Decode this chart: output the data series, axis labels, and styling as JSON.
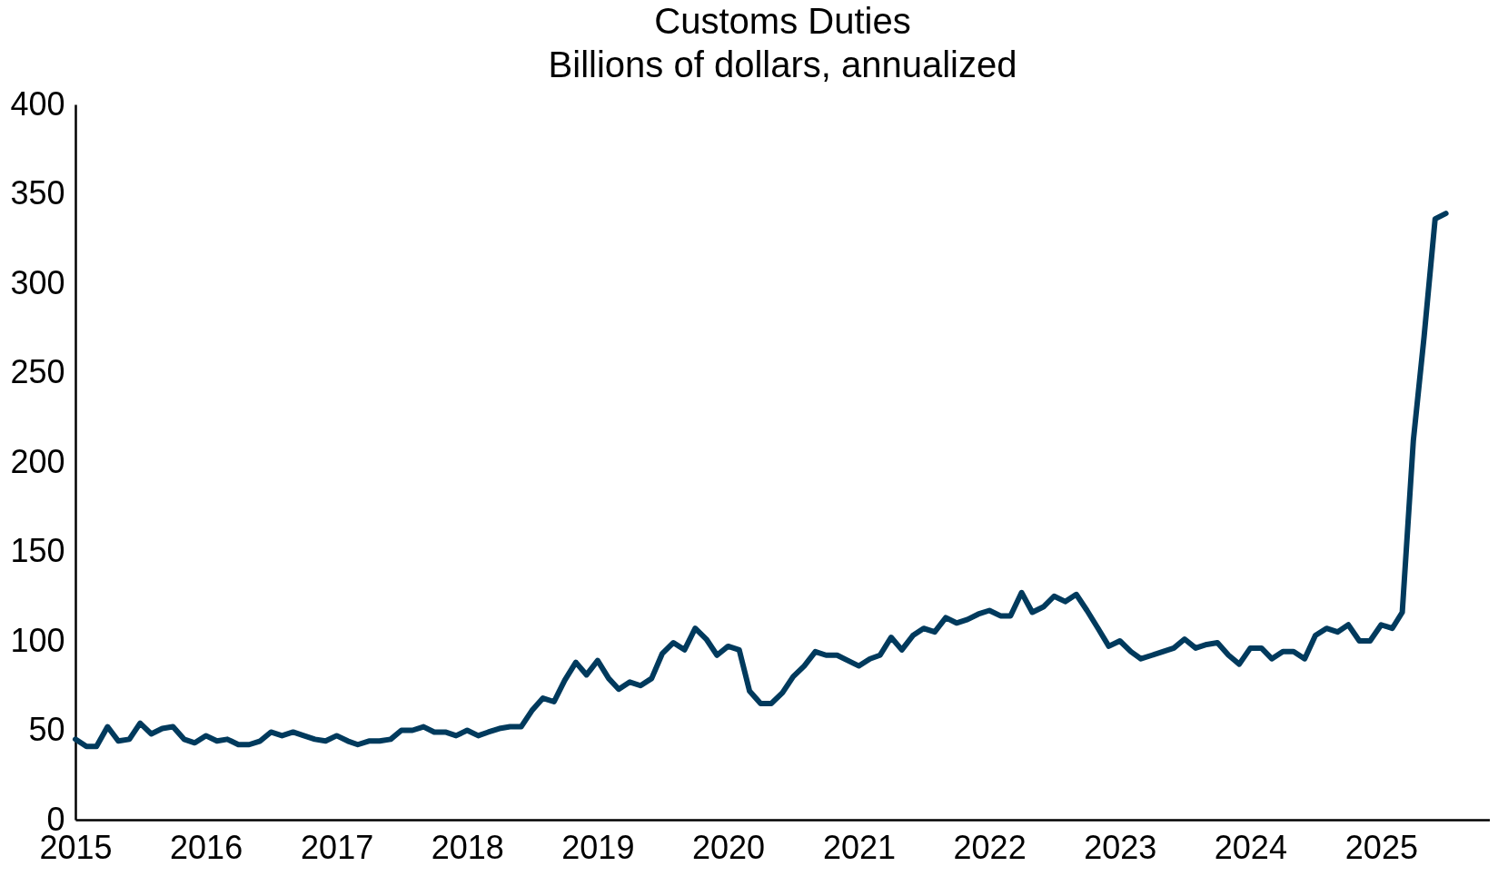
{
  "chart_data": {
    "type": "line",
    "title": "Customs Duties",
    "subtitle": "Billions of dollars, annualized",
    "x": [
      "2015-01",
      "2015-02",
      "2015-03",
      "2015-04",
      "2015-05",
      "2015-06",
      "2015-07",
      "2015-08",
      "2015-09",
      "2015-10",
      "2015-11",
      "2015-12",
      "2016-01",
      "2016-02",
      "2016-03",
      "2016-04",
      "2016-05",
      "2016-06",
      "2016-07",
      "2016-08",
      "2016-09",
      "2016-10",
      "2016-11",
      "2016-12",
      "2017-01",
      "2017-02",
      "2017-03",
      "2017-04",
      "2017-05",
      "2017-06",
      "2017-07",
      "2017-08",
      "2017-09",
      "2017-10",
      "2017-11",
      "2017-12",
      "2018-01",
      "2018-02",
      "2018-03",
      "2018-04",
      "2018-05",
      "2018-06",
      "2018-07",
      "2018-08",
      "2018-09",
      "2018-10",
      "2018-11",
      "2018-12",
      "2019-01",
      "2019-02",
      "2019-03",
      "2019-04",
      "2019-05",
      "2019-06",
      "2019-07",
      "2019-08",
      "2019-09",
      "2019-10",
      "2019-11",
      "2019-12",
      "2020-01",
      "2020-02",
      "2020-03",
      "2020-04",
      "2020-05",
      "2020-06",
      "2020-07",
      "2020-08",
      "2020-09",
      "2020-10",
      "2020-11",
      "2020-12",
      "2021-01",
      "2021-02",
      "2021-03",
      "2021-04",
      "2021-05",
      "2021-06",
      "2021-07",
      "2021-08",
      "2021-09",
      "2021-10",
      "2021-11",
      "2021-12",
      "2022-01",
      "2022-02",
      "2022-03",
      "2022-04",
      "2022-05",
      "2022-06",
      "2022-07",
      "2022-08",
      "2022-09",
      "2022-10",
      "2022-11",
      "2022-12",
      "2023-01",
      "2023-02",
      "2023-03",
      "2023-04",
      "2023-05",
      "2023-06",
      "2023-07",
      "2023-08",
      "2023-09",
      "2023-10",
      "2023-11",
      "2023-12",
      "2024-01",
      "2024-02",
      "2024-03",
      "2024-04",
      "2024-05",
      "2024-06",
      "2024-07",
      "2024-08",
      "2024-09",
      "2024-10",
      "2024-11",
      "2024-12",
      "2025-01",
      "2025-02",
      "2025-03",
      "2025-04",
      "2025-05",
      "2025-06",
      "2025-07"
    ],
    "series": [
      {
        "color": "#003a5d",
        "values": [
          45,
          41,
          41,
          52,
          44,
          45,
          54,
          48,
          51,
          52,
          45,
          43,
          47,
          44,
          45,
          42,
          42,
          44,
          49,
          47,
          49,
          47,
          45,
          44,
          47,
          44,
          42,
          44,
          44,
          45,
          50,
          50,
          52,
          49,
          49,
          47,
          50,
          47,
          49,
          51,
          52,
          52,
          61,
          68,
          66,
          78,
          88,
          81,
          89,
          79,
          73,
          77,
          75,
          79,
          93,
          99,
          95,
          107,
          101,
          92,
          97,
          95,
          72,
          65,
          65,
          71,
          80,
          86,
          94,
          92,
          92,
          89,
          86,
          90,
          92,
          102,
          95,
          103,
          107,
          105,
          113,
          110,
          112,
          115,
          117,
          114,
          114,
          127,
          116,
          119,
          125,
          122,
          126,
          117,
          107,
          97,
          100,
          94,
          90,
          92,
          94,
          96,
          101,
          96,
          98,
          99,
          92,
          87,
          96,
          96,
          90,
          94,
          94,
          90,
          103,
          107,
          105,
          109,
          100,
          100,
          109,
          107,
          116,
          212,
          270,
          336,
          339
        ]
      }
    ],
    "xlim": [
      "2015-01",
      "2025-11"
    ],
    "xticks": [
      "2015",
      "2016",
      "2017",
      "2018",
      "2019",
      "2020",
      "2021",
      "2022",
      "2023",
      "2024",
      "2025"
    ],
    "ylim": [
      0,
      400
    ],
    "yticks": [
      0,
      50,
      100,
      150,
      200,
      250,
      300,
      350,
      400
    ]
  }
}
